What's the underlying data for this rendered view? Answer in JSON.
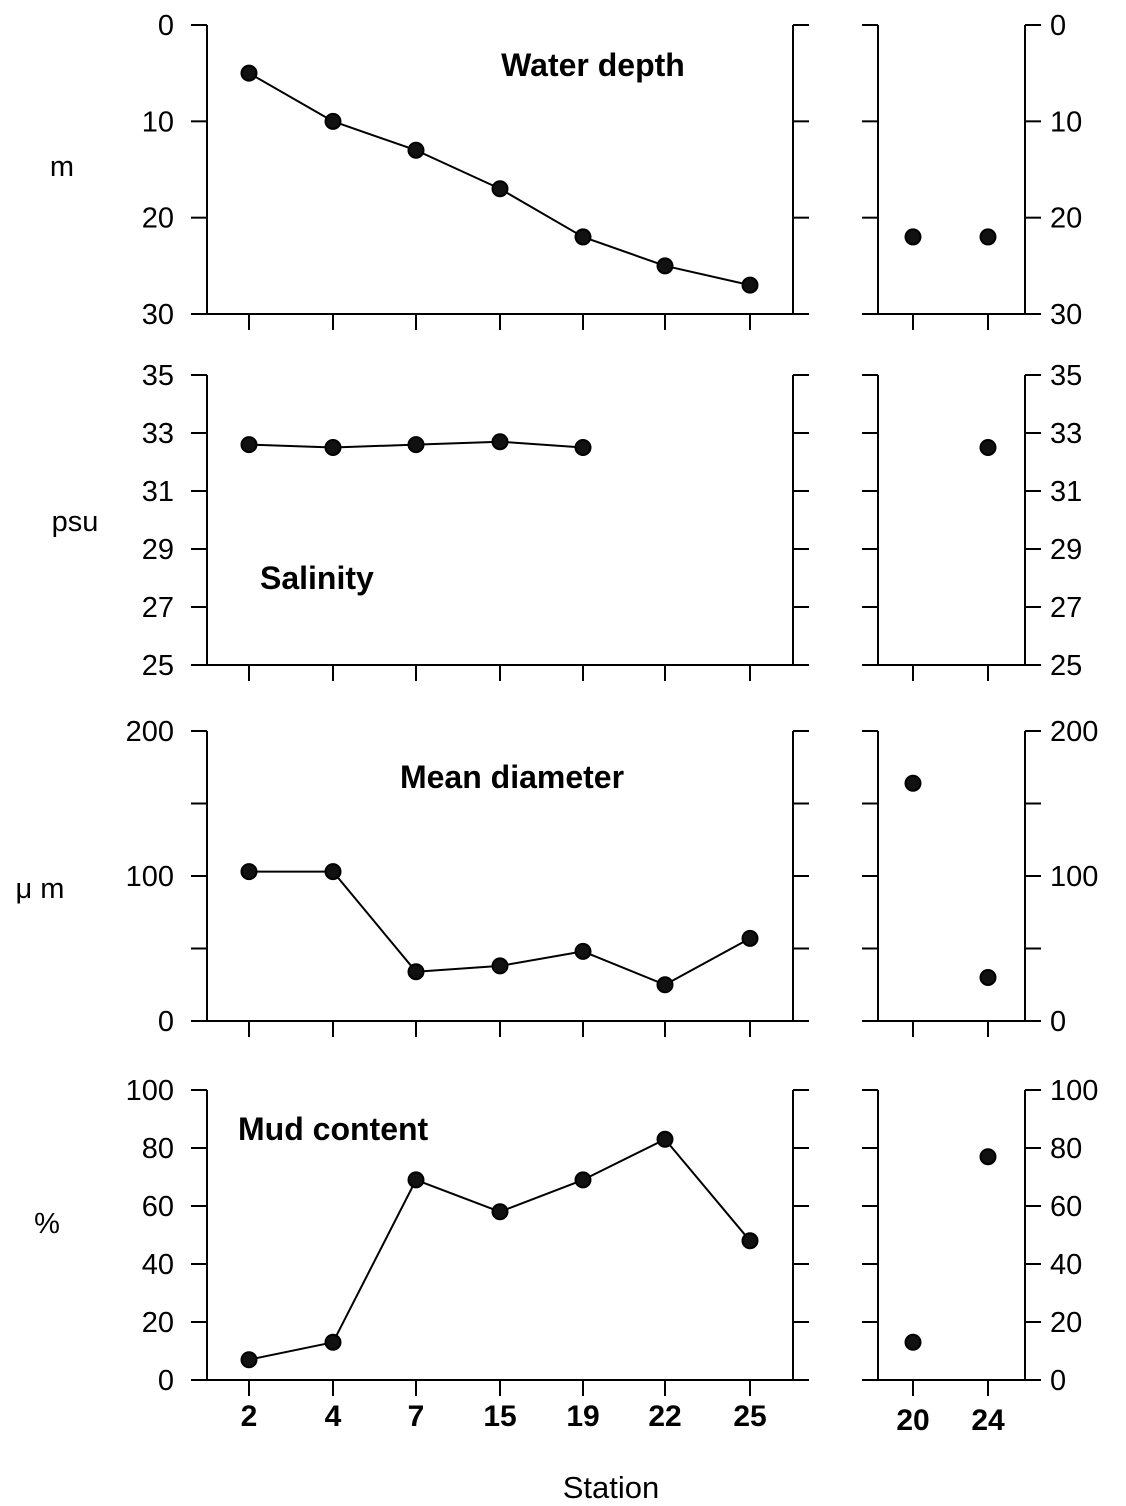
{
  "figure": {
    "xlabel": "Station",
    "main_stations": [
      "2",
      "4",
      "7",
      "15",
      "19",
      "22",
      "25"
    ],
    "side_stations": [
      "20",
      "24"
    ]
  },
  "chart_data": [
    {
      "type": "line",
      "title": "Water depth",
      "ylabel": "m",
      "ylim": [
        0,
        30
      ],
      "y_inverted": true,
      "ytick_labels": [
        "0",
        "10",
        "20",
        "30"
      ],
      "categories": [
        "2",
        "4",
        "7",
        "15",
        "19",
        "22",
        "25"
      ],
      "values": [
        5,
        10,
        13,
        17,
        22,
        25,
        27
      ],
      "side_panel": {
        "type": "scatter",
        "categories": [
          "20",
          "24"
        ],
        "values": [
          22,
          22
        ]
      }
    },
    {
      "type": "line",
      "title": "Salinity",
      "ylabel": "psu",
      "ylim": [
        25,
        35
      ],
      "y_inverted": false,
      "ytick_labels": [
        "25",
        "27",
        "29",
        "31",
        "33",
        "35"
      ],
      "categories": [
        "2",
        "4",
        "7",
        "15",
        "19",
        "22",
        "25"
      ],
      "values": [
        32.6,
        32.5,
        32.6,
        32.7,
        32.5,
        null,
        null
      ],
      "side_panel": {
        "type": "scatter",
        "categories": [
          "20",
          "24"
        ],
        "values": [
          null,
          32.5
        ]
      }
    },
    {
      "type": "line",
      "title": "Mean diameter",
      "ylabel": "μ m",
      "ylim": [
        0,
        200
      ],
      "y_inverted": false,
      "ytick_labels": [
        "0",
        "100",
        "200"
      ],
      "minor_ticks": [
        50,
        150
      ],
      "categories": [
        "2",
        "4",
        "7",
        "15",
        "19",
        "22",
        "25"
      ],
      "values": [
        103,
        103,
        34,
        38,
        48,
        25,
        57
      ],
      "side_panel": {
        "type": "scatter",
        "categories": [
          "20",
          "24"
        ],
        "values": [
          164,
          30
        ]
      }
    },
    {
      "type": "line",
      "title": "Mud content",
      "ylabel": "%",
      "ylim": [
        0,
        100
      ],
      "y_inverted": false,
      "ytick_labels": [
        "0",
        "20",
        "40",
        "60",
        "80",
        "100"
      ],
      "categories": [
        "2",
        "4",
        "7",
        "15",
        "19",
        "22",
        "25"
      ],
      "values": [
        7,
        13,
        69,
        58,
        69,
        83,
        48
      ],
      "side_panel": {
        "type": "scatter",
        "categories": [
          "20",
          "24"
        ],
        "values": [
          13,
          77
        ]
      }
    }
  ]
}
